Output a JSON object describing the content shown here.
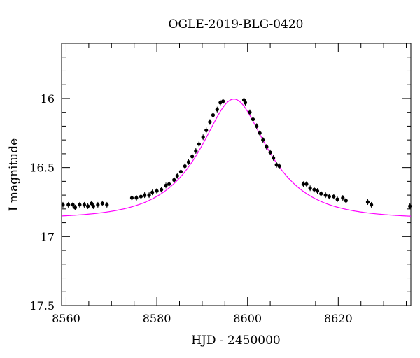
{
  "chart_data": {
    "type": "scatter",
    "title": "OGLE-2019-BLG-0420",
    "xlabel": "HJD - 2450000",
    "ylabel": "I magnitude",
    "xlim": [
      8559,
      8636
    ],
    "ylim": [
      17.5,
      15.6
    ],
    "y_inverted": true,
    "x_ticks": [
      8560,
      8580,
      8600,
      8620
    ],
    "y_ticks": [
      16,
      16.5,
      17,
      17.5
    ],
    "x_tick_labels": [
      "8560",
      "8580",
      "8600",
      "8620"
    ],
    "y_tick_labels": [
      "16",
      "16.5",
      "17",
      "17.5"
    ],
    "grid": false,
    "colors": {
      "data": "#000000",
      "model": "#ff00ff"
    },
    "model": {
      "label": "",
      "t0": 8597,
      "tE": 13,
      "u0": 0.49,
      "I_base": 16.87,
      "fs": 1.0
    },
    "series": [
      {
        "values": [
          [
            8559.3,
            16.77
          ],
          [
            8560.5,
            16.77
          ],
          [
            8561.5,
            16.77
          ],
          [
            8562.0,
            16.79
          ],
          [
            8563.0,
            16.77
          ],
          [
            8564.0,
            16.77
          ],
          [
            8564.8,
            16.78
          ],
          [
            8565.6,
            16.76
          ],
          [
            8566.0,
            16.78
          ],
          [
            8567.0,
            16.77
          ],
          [
            8568.0,
            16.76
          ],
          [
            8569.0,
            16.77
          ],
          [
            8574.5,
            16.72
          ],
          [
            8575.5,
            16.72
          ],
          [
            8576.5,
            16.71
          ],
          [
            8577.3,
            16.7
          ],
          [
            8578.3,
            16.7
          ],
          [
            8579.0,
            16.68
          ],
          [
            8580.0,
            16.67
          ],
          [
            8581.0,
            16.66
          ],
          [
            8582.0,
            16.63
          ],
          [
            8582.7,
            16.62
          ],
          [
            8583.8,
            16.59
          ],
          [
            8584.5,
            16.56
          ],
          [
            8585.3,
            16.53
          ],
          [
            8586.2,
            16.49
          ],
          [
            8587.0,
            16.46
          ],
          [
            8587.8,
            16.42
          ],
          [
            8588.6,
            16.38
          ],
          [
            8589.3,
            16.33
          ],
          [
            8590.2,
            16.28
          ],
          [
            8590.9,
            16.23
          ],
          [
            8591.7,
            16.17
          ],
          [
            8592.4,
            16.12
          ],
          [
            8593.3,
            16.08
          ],
          [
            8594.0,
            16.03
          ],
          [
            8594.6,
            16.02
          ],
          [
            8599.2,
            16.01
          ],
          [
            8599.5,
            16.03
          ],
          [
            8600.5,
            16.1
          ],
          [
            8601.2,
            16.15
          ],
          [
            8602.0,
            16.2
          ],
          [
            8602.7,
            16.25
          ],
          [
            8603.4,
            16.3
          ],
          [
            8604.2,
            16.35
          ],
          [
            8605.0,
            16.39
          ],
          [
            8605.7,
            16.43
          ],
          [
            8606.4,
            16.48
          ],
          [
            8607.0,
            16.49
          ],
          [
            8612.3,
            16.62
          ],
          [
            8613.0,
            16.62
          ],
          [
            8613.8,
            16.65
          ],
          [
            8614.7,
            16.66
          ],
          [
            8615.4,
            16.67
          ],
          [
            8616.2,
            16.69
          ],
          [
            8617.2,
            16.7
          ],
          [
            8618.0,
            16.71
          ],
          [
            8619.0,
            16.71
          ],
          [
            8619.8,
            16.73
          ],
          [
            8621.0,
            16.72
          ],
          [
            8621.7,
            16.74
          ],
          [
            8626.5,
            16.75
          ],
          [
            8627.3,
            16.77
          ],
          [
            8635.8,
            16.78
          ]
        ]
      }
    ]
  }
}
